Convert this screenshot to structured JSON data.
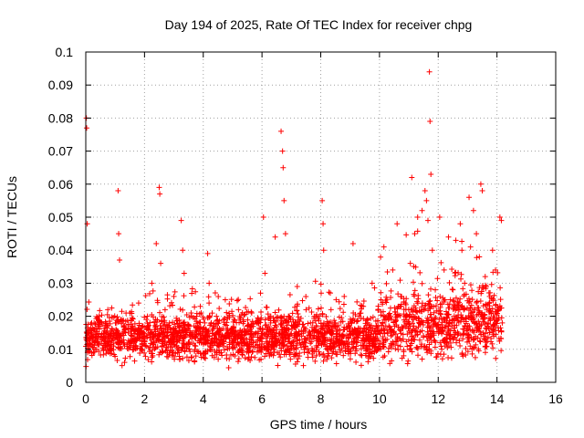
{
  "chart_data": {
    "type": "scatter",
    "title": "Day 194 of 2025, Rate Of TEC Index for receiver chpg",
    "xlabel": "GPS time / hours",
    "ylabel": "ROTI / TECUs",
    "xlim": [
      0,
      16
    ],
    "ylim": [
      0,
      0.1
    ],
    "x_ticks": [
      0,
      2,
      4,
      6,
      8,
      10,
      12,
      14,
      16
    ],
    "x_tick_labels": [
      "0",
      "2",
      "4",
      "6",
      "8",
      "10",
      "12",
      "14",
      "16"
    ],
    "y_ticks": [
      0,
      0.01,
      0.02,
      0.03,
      0.04,
      0.05,
      0.06,
      0.07,
      0.08,
      0.09,
      0.1
    ],
    "y_tick_labels": [
      "0",
      "0.01",
      "0.02",
      "0.03",
      "0.04",
      "0.05",
      "0.06",
      "0.07",
      "0.08",
      "0.09",
      "0.1"
    ],
    "grid": true,
    "marker": "+",
    "series": [
      {
        "name": "ROTI",
        "color": "#ff0000",
        "x": [
          0.02,
          0.03,
          0.05,
          0.02,
          0.1,
          0.2,
          0.3,
          0.45,
          0.6,
          0.75,
          0.9,
          1.05,
          1.1,
          1.12,
          1.15,
          1.1,
          1.2,
          1.35,
          1.5,
          1.65,
          1.8,
          1.95,
          2.1,
          2.25,
          2.4,
          2.5,
          2.52,
          2.55,
          2.6,
          2.7,
          2.85,
          3.0,
          3.15,
          3.25,
          3.3,
          3.35,
          3.45,
          3.6,
          3.75,
          3.9,
          4.05,
          4.15,
          4.2,
          4.3,
          4.45,
          4.6,
          4.75,
          4.9,
          5.05,
          5.2,
          5.35,
          5.5,
          5.65,
          5.8,
          5.95,
          6.05,
          6.1,
          6.2,
          6.3,
          6.45,
          6.6,
          6.65,
          6.7,
          6.72,
          6.75,
          6.8,
          6.9,
          7.05,
          7.2,
          7.35,
          7.5,
          7.65,
          7.8,
          7.95,
          8.05,
          8.08,
          8.1,
          8.2,
          8.35,
          8.5,
          8.65,
          8.8,
          8.95,
          9.1,
          9.2,
          9.3,
          9.45,
          9.6,
          9.75,
          9.9,
          10.05,
          10.15,
          10.3,
          10.45,
          10.6,
          10.75,
          10.9,
          11.05,
          11.1,
          11.2,
          11.3,
          11.45,
          11.55,
          11.6,
          11.65,
          11.7,
          11.72,
          11.75,
          11.8,
          11.9,
          12.05,
          12.2,
          12.35,
          12.5,
          12.6,
          12.75,
          12.9,
          13.05,
          13.1,
          13.2,
          13.3,
          13.4,
          13.45,
          13.5,
          13.6,
          13.75,
          13.85,
          13.95,
          14.05,
          14.1,
          14.15,
          14.18
        ],
        "y": [
          0.08,
          0.077,
          0.048,
          0.013,
          0.015,
          0.018,
          0.012,
          0.02,
          0.014,
          0.022,
          0.016,
          0.018,
          0.058,
          0.045,
          0.037,
          0.012,
          0.019,
          0.015,
          0.021,
          0.013,
          0.024,
          0.017,
          0.02,
          0.03,
          0.042,
          0.059,
          0.057,
          0.036,
          0.015,
          0.022,
          0.018,
          0.026,
          0.017,
          0.049,
          0.04,
          0.033,
          0.016,
          0.02,
          0.014,
          0.023,
          0.018,
          0.039,
          0.03,
          0.012,
          0.02,
          0.016,
          0.025,
          0.014,
          0.019,
          0.022,
          0.013,
          0.017,
          0.021,
          0.015,
          0.027,
          0.05,
          0.033,
          0.016,
          0.02,
          0.044,
          0.012,
          0.076,
          0.07,
          0.065,
          0.055,
          0.045,
          0.02,
          0.017,
          0.029,
          0.014,
          0.022,
          0.018,
          0.016,
          0.02,
          0.055,
          0.048,
          0.04,
          0.015,
          0.022,
          0.018,
          0.014,
          0.026,
          0.017,
          0.042,
          0.015,
          0.02,
          0.023,
          0.018,
          0.03,
          0.017,
          0.025,
          0.041,
          0.02,
          0.034,
          0.048,
          0.026,
          0.022,
          0.036,
          0.062,
          0.045,
          0.05,
          0.052,
          0.058,
          0.055,
          0.049,
          0.094,
          0.079,
          0.063,
          0.04,
          0.028,
          0.05,
          0.034,
          0.044,
          0.028,
          0.043,
          0.048,
          0.03,
          0.056,
          0.041,
          0.052,
          0.045,
          0.038,
          0.06,
          0.058,
          0.032,
          0.026,
          0.04,
          0.034,
          0.022,
          0.05,
          0.049,
          0.018
        ]
      }
    ]
  }
}
